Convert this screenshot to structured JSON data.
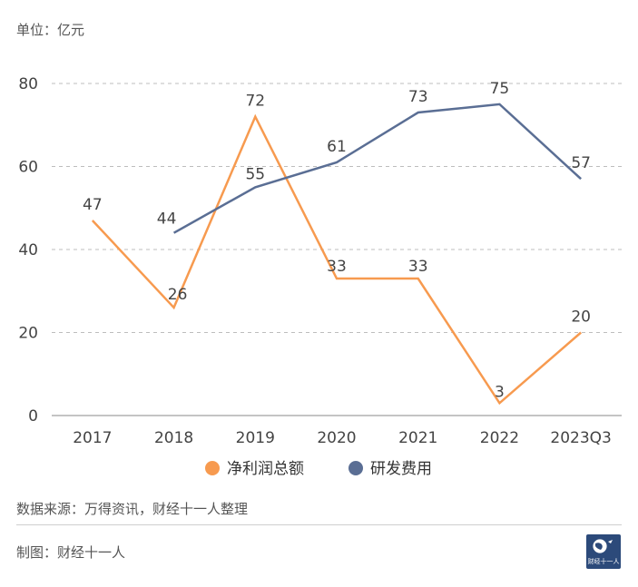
{
  "unit_label": "单位：亿元",
  "source_text": "数据来源：万得资讯，财经十一人整理",
  "credit_text": "制图：财经十一人",
  "logo_text": "财经十一人",
  "colors": {
    "net_profit": "#f79a4f",
    "rnd": "#5a6e94",
    "grid": "#bdbdbd",
    "axis_text": "#444444"
  },
  "chart_data": {
    "type": "line",
    "categories": [
      "2017",
      "2018",
      "2019",
      "2020",
      "2021",
      "2022",
      "2023Q3"
    ],
    "ylim": [
      0,
      80
    ],
    "yticks": [
      0,
      20,
      40,
      60,
      80
    ],
    "grid": true,
    "legend_position": "bottom",
    "series": [
      {
        "name": "净利润总额",
        "values": [
          47,
          26,
          72,
          33,
          33,
          3,
          20
        ]
      },
      {
        "name": "研发费用",
        "values": [
          null,
          44,
          55,
          61,
          73,
          75,
          57
        ]
      }
    ]
  }
}
